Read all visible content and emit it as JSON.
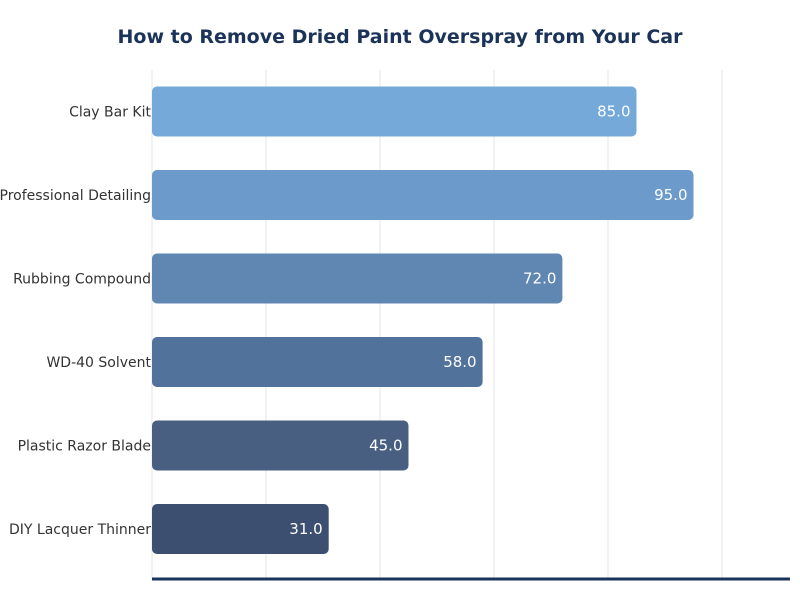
{
  "chart_data": {
    "type": "bar",
    "orientation": "horizontal",
    "title": "How to Remove Dried Paint Overspray from Your Car",
    "xlabel": "",
    "ylabel": "",
    "categories": [
      "Clay Bar Kit",
      "Professional Detailing",
      "Rubbing Compound",
      "WD-40 Solvent",
      "Plastic Razor Blade",
      "DIY Lacquer Thinner"
    ],
    "values": [
      85.0,
      95.0,
      72.0,
      58.0,
      45.0,
      31.0
    ],
    "value_labels": [
      "85.0",
      "95.0",
      "72.0",
      "58.0",
      "45.0",
      "31.0"
    ],
    "bar_colors": [
      "#74a9da",
      "#6b9acb",
      "#5f87b2",
      "#51729a",
      "#485f82",
      "#3d4f70"
    ],
    "xlim": [
      0,
      100
    ],
    "grid": true,
    "legend": "none",
    "axis_color": "#1b3358"
  }
}
